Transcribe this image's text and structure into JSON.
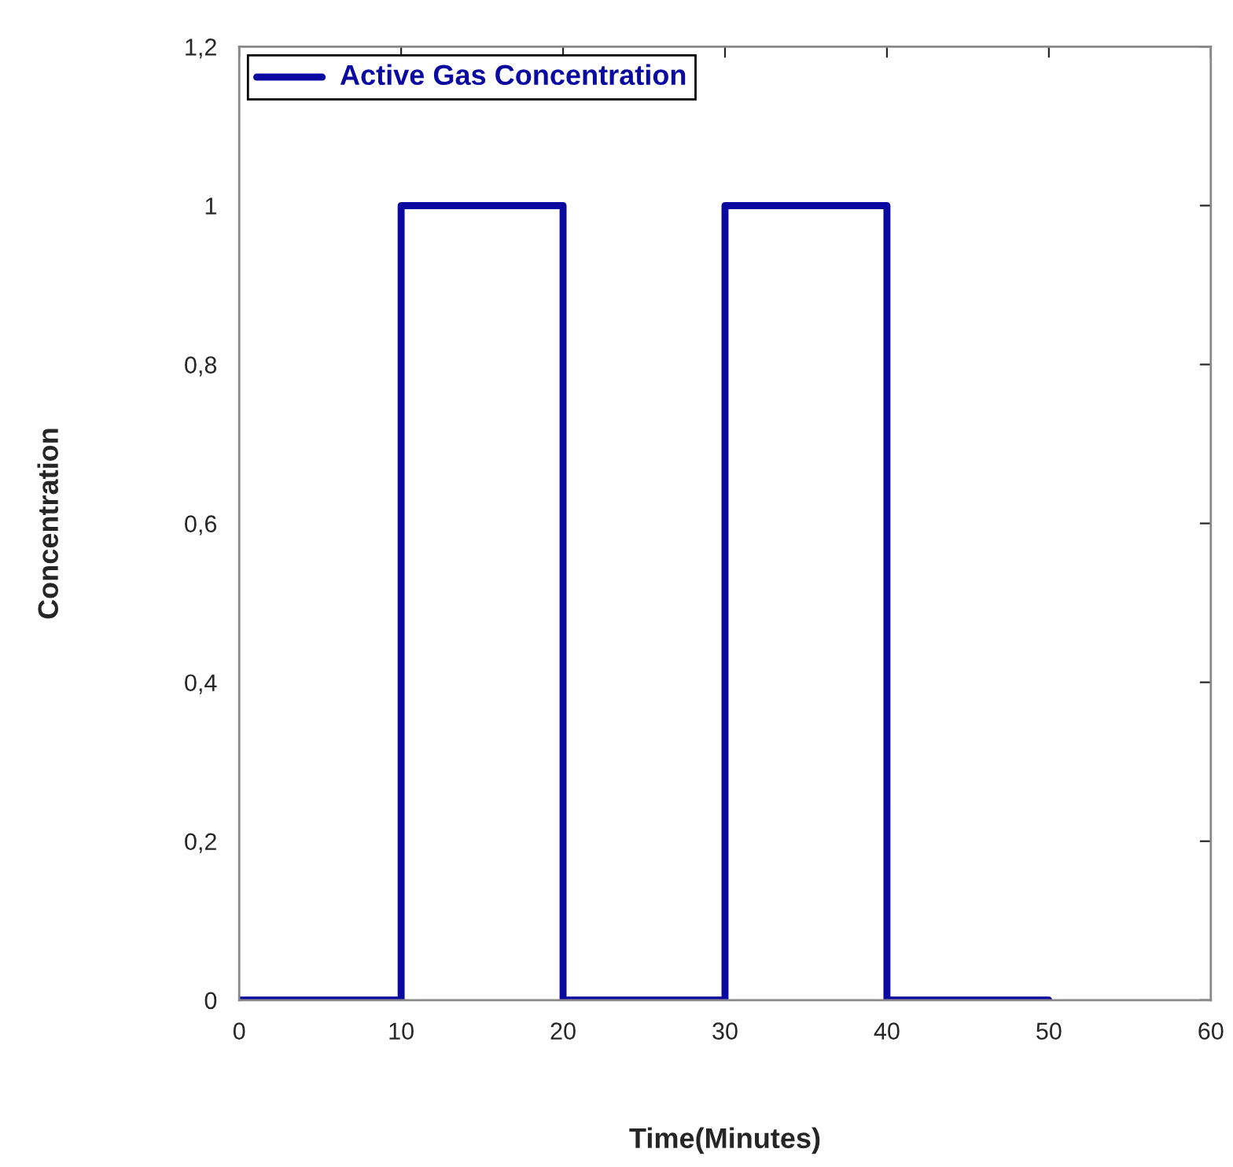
{
  "chart_data": {
    "type": "step",
    "xlabel": "Time(Minutes)",
    "ylabel": "Concentration",
    "x": [
      0,
      10,
      20,
      30,
      40,
      50
    ],
    "series": [
      {
        "name": "Active Gas Concentration",
        "color": "#0a0aa0",
        "values": [
          0,
          1,
          0,
          1,
          0,
          0
        ]
      }
    ],
    "xlim": [
      0,
      60
    ],
    "xticks": [
      0,
      10,
      20,
      30,
      40,
      50,
      60
    ],
    "ylim": [
      0,
      1.2
    ],
    "yticks": [
      0,
      {
        "value": 0.2,
        "label": "0,2"
      },
      {
        "value": 0.4,
        "label": "0,4"
      },
      {
        "value": 0.6,
        "label": "0,6"
      },
      {
        "value": 0.8,
        "label": "0,8"
      },
      1,
      {
        "value": 1.2,
        "label": "1,2"
      }
    ],
    "grid": false,
    "legend": "top left",
    "marker": "none",
    "line_style": "solid"
  }
}
